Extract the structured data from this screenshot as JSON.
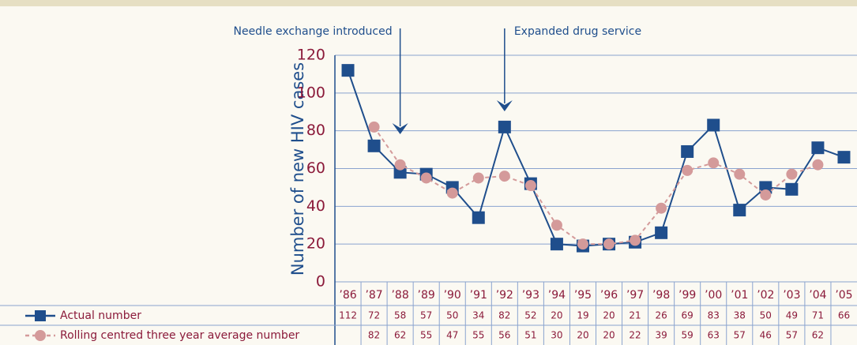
{
  "chart_data": {
    "type": "line",
    "ylabel": "Number of new HIV cases",
    "categories": [
      "’86",
      "’87",
      "’88",
      "’89",
      "’90",
      "’91",
      "’92",
      "’93",
      "’94",
      "’95",
      "’96",
      "’97",
      "’98",
      "’99",
      "’00",
      "’01",
      "’02",
      "’03",
      "’04",
      "’05"
    ],
    "series": [
      {
        "name": "Actual number",
        "color": "#1f4e8c",
        "values": [
          112,
          72,
          58,
          57,
          50,
          34,
          82,
          52,
          20,
          19,
          20,
          21,
          26,
          69,
          83,
          38,
          50,
          49,
          71,
          66
        ]
      },
      {
        "name": "Rolling centred three year average number",
        "color": "#d49a9a",
        "values": [
          null,
          82,
          62,
          55,
          47,
          55,
          56,
          51,
          30,
          20,
          20,
          22,
          39,
          59,
          63,
          57,
          46,
          57,
          62,
          null
        ]
      }
    ],
    "annotations": [
      "Needle exchange introduced",
      "Expanded drug service"
    ],
    "ylim": [
      0,
      120
    ],
    "yticks": [
      0,
      20,
      40,
      60,
      80,
      100,
      120
    ],
    "grid": true
  }
}
